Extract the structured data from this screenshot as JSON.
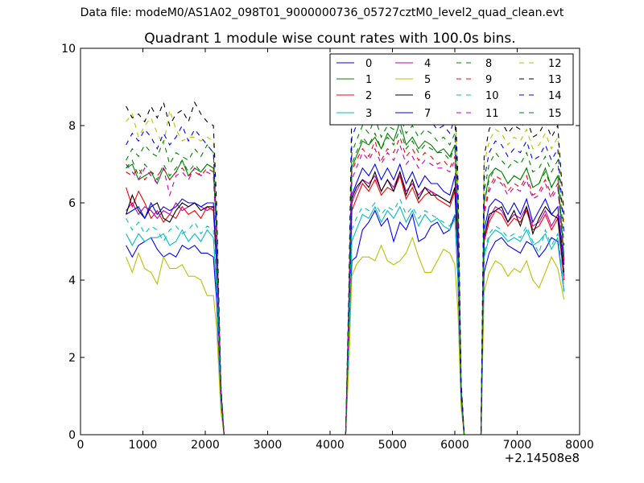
{
  "suptitle": "Data file: modeM0/AS1A02_098T01_9000000736_05727cztM0_level2_quad_clean.evt",
  "chart_data": {
    "type": "line",
    "title": "Quadrant 1 module wise count rates with 100.0s bins.",
    "xlabel": "",
    "ylabel": "",
    "x_offset_label": "+2.14508e8",
    "xlim": [
      0,
      8000
    ],
    "ylim": [
      0,
      10
    ],
    "xticks": [
      "0",
      "1000",
      "2000",
      "3000",
      "4000",
      "5000",
      "6000",
      "7000",
      "8000"
    ],
    "yticks": [
      "0",
      "2",
      "4",
      "6",
      "8",
      "10"
    ],
    "grid": false,
    "legend_position": "top-right",
    "x": [
      730,
      830,
      930,
      1030,
      1130,
      1230,
      1330,
      1430,
      1530,
      1630,
      1730,
      1830,
      1930,
      2030,
      2130,
      2180,
      2250,
      2300,
      2350,
      4250,
      4300,
      4350,
      4420,
      4520,
      4620,
      4720,
      4820,
      4920,
      5020,
      5120,
      5220,
      5320,
      5420,
      5520,
      5620,
      5720,
      5820,
      5920,
      6000,
      6050,
      6100,
      6150,
      6230,
      6420,
      6470,
      6550,
      6650,
      6750,
      6850,
      6950,
      7050,
      7150,
      7250,
      7350,
      7450,
      7550,
      7650,
      7750
    ],
    "series": [
      {
        "name": "0",
        "color": "#0000ff",
        "dash": "solid",
        "values": [
          4.9,
          4.6,
          4.9,
          5.0,
          5.1,
          4.8,
          4.6,
          4.7,
          4.6,
          4.9,
          4.8,
          4.9,
          4.7,
          4.7,
          4.6,
          3.5,
          0.8,
          0,
          0,
          0,
          2.2,
          4.5,
          4.6,
          5.3,
          5.5,
          5.8,
          5.4,
          5.6,
          5.0,
          5.5,
          5.3,
          5.7,
          5.0,
          5.1,
          5.4,
          5.5,
          5.2,
          5.3,
          5.7,
          4.0,
          0.9,
          0,
          0,
          0,
          4.2,
          4.7,
          5.0,
          5.1,
          4.9,
          4.8,
          4.7,
          5.0,
          4.9,
          4.6,
          4.8,
          5.1,
          5.0,
          3.7
        ]
      },
      {
        "name": "1",
        "color": "#008000",
        "dash": "solid",
        "values": [
          6.9,
          7.0,
          6.6,
          6.7,
          6.8,
          6.5,
          6.9,
          6.6,
          6.8,
          7.1,
          6.7,
          6.9,
          6.8,
          7.0,
          6.9,
          5.2,
          1.2,
          0,
          0,
          0,
          3.3,
          6.9,
          7.2,
          7.6,
          7.5,
          7.7,
          7.4,
          7.8,
          7.6,
          8.1,
          7.5,
          7.7,
          7.4,
          7.6,
          7.5,
          7.3,
          7.4,
          7.2,
          7.5,
          5.5,
          1.2,
          0,
          0,
          0,
          6.0,
          6.7,
          6.9,
          6.8,
          6.5,
          6.7,
          6.6,
          6.9,
          6.4,
          6.5,
          6.9,
          6.4,
          6.7,
          4.6
        ]
      },
      {
        "name": "2",
        "color": "#ff0000",
        "dash": "solid",
        "values": [
          6.4,
          5.9,
          6.3,
          6.0,
          5.6,
          5.8,
          5.5,
          5.7,
          5.6,
          5.9,
          5.7,
          5.8,
          5.6,
          5.9,
          5.8,
          4.4,
          1.0,
          0,
          0,
          0,
          2.8,
          5.8,
          6.1,
          6.5,
          6.3,
          6.6,
          6.2,
          6.4,
          6.3,
          6.7,
          6.1,
          6.4,
          6.0,
          6.2,
          6.3,
          6.1,
          6.0,
          5.9,
          6.3,
          4.6,
          1.0,
          0,
          0,
          0,
          5.0,
          5.5,
          5.8,
          5.7,
          5.4,
          5.6,
          5.5,
          5.8,
          5.3,
          5.4,
          5.7,
          5.3,
          5.6,
          4.0
        ]
      },
      {
        "name": "3",
        "color": "#00bfbf",
        "dash": "solid",
        "values": [
          5.2,
          4.9,
          5.2,
          5.0,
          5.1,
          5.1,
          5.2,
          4.9,
          5.0,
          5.3,
          5.0,
          5.2,
          5.0,
          5.3,
          5.1,
          3.8,
          0.9,
          0,
          0,
          0,
          2.4,
          5.0,
          5.3,
          5.7,
          5.6,
          5.9,
          5.5,
          5.8,
          5.6,
          5.9,
          5.5,
          5.8,
          5.4,
          5.7,
          5.5,
          5.6,
          5.4,
          5.3,
          5.6,
          4.2,
          0.9,
          0,
          0,
          0,
          4.6,
          5.1,
          5.3,
          5.2,
          5.0,
          5.1,
          5.0,
          5.3,
          4.9,
          5.0,
          5.2,
          4.8,
          5.1,
          3.7
        ]
      },
      {
        "name": "4",
        "color": "#bf00bf",
        "dash": "solid",
        "values": [
          5.8,
          6.0,
          5.7,
          5.9,
          5.8,
          5.6,
          5.8,
          5.7,
          6.0,
          5.8,
          5.9,
          6.0,
          5.9,
          5.8,
          5.9,
          4.5,
          1.0,
          0,
          0,
          0,
          2.9,
          6.0,
          6.3,
          6.6,
          6.5,
          6.7,
          6.3,
          6.6,
          6.4,
          6.8,
          6.3,
          6.5,
          6.2,
          6.4,
          6.3,
          6.2,
          6.1,
          6.0,
          6.4,
          4.7,
          1.0,
          0,
          0,
          0,
          5.1,
          5.6,
          5.9,
          5.8,
          5.5,
          5.7,
          5.6,
          5.9,
          5.4,
          5.5,
          5.8,
          5.4,
          5.7,
          4.1
        ]
      },
      {
        "name": "5",
        "color": "#bfbf00",
        "dash": "solid",
        "values": [
          4.6,
          4.2,
          4.7,
          4.3,
          4.2,
          3.9,
          4.6,
          4.3,
          4.3,
          4.4,
          4.1,
          4.1,
          4.0,
          3.6,
          3.6,
          2.8,
          0.6,
          0,
          0,
          0,
          1.8,
          4.1,
          4.4,
          4.6,
          4.6,
          4.5,
          4.9,
          4.5,
          4.4,
          4.5,
          4.7,
          5.1,
          4.6,
          4.2,
          4.2,
          4.5,
          4.8,
          4.7,
          4.4,
          3.2,
          0.7,
          0,
          0,
          0,
          3.7,
          4.2,
          4.5,
          4.4,
          4.1,
          4.3,
          4.2,
          4.5,
          4.0,
          3.8,
          4.2,
          4.6,
          4.3,
          3.5
        ]
      },
      {
        "name": "6",
        "color": "#000000",
        "dash": "solid",
        "values": [
          5.7,
          6.2,
          5.8,
          5.6,
          5.9,
          6.0,
          5.6,
          5.5,
          5.8,
          6.0,
          5.9,
          6.0,
          5.8,
          5.9,
          5.9,
          4.5,
          1.0,
          0,
          0,
          0,
          2.9,
          6.1,
          6.4,
          6.6,
          6.4,
          6.8,
          6.3,
          6.6,
          6.3,
          6.8,
          6.2,
          6.6,
          6.1,
          6.4,
          6.2,
          6.2,
          6.1,
          6.0,
          6.4,
          4.7,
          1.0,
          0,
          0,
          0,
          5.1,
          5.7,
          5.8,
          5.9,
          5.5,
          5.8,
          5.4,
          5.9,
          5.2,
          5.6,
          5.9,
          5.7,
          5.6,
          4.2
        ]
      },
      {
        "name": "7",
        "color": "#0000ff",
        "dash": "solid",
        "values": [
          5.7,
          5.8,
          5.9,
          5.6,
          6.0,
          5.7,
          5.9,
          5.8,
          5.9,
          6.1,
          6.0,
          6.0,
          5.9,
          6.0,
          6.0,
          4.6,
          1.0,
          0,
          0,
          0,
          2.9,
          6.2,
          6.5,
          6.9,
          6.7,
          7.0,
          6.6,
          6.9,
          6.6,
          7.0,
          6.5,
          6.8,
          6.4,
          6.7,
          6.5,
          6.5,
          6.3,
          6.2,
          6.7,
          4.9,
          1.1,
          0,
          0,
          0,
          5.3,
          5.9,
          6.1,
          6.0,
          5.7,
          6.0,
          5.7,
          6.1,
          5.5,
          5.8,
          6.1,
          5.7,
          5.9,
          4.4
        ]
      },
      {
        "name": "8",
        "color": "#008000",
        "dash": "dashed",
        "values": [
          7.1,
          7.4,
          7.2,
          7.5,
          7.3,
          7.2,
          7.6,
          7.0,
          7.3,
          7.2,
          7.1,
          7.4,
          7.2,
          7.5,
          7.3,
          5.5,
          1.2,
          0,
          0,
          0,
          3.4,
          7.3,
          7.6,
          8.0,
          7.8,
          8.2,
          7.7,
          8.0,
          7.9,
          8.3,
          7.8,
          8.0,
          7.7,
          7.9,
          7.8,
          7.6,
          7.7,
          7.5,
          7.8,
          5.8,
          1.3,
          0,
          0,
          0,
          6.3,
          7.0,
          7.3,
          7.1,
          6.9,
          7.1,
          7.0,
          7.3,
          6.8,
          6.9,
          7.2,
          6.8,
          7.1,
          4.9
        ]
      },
      {
        "name": "9",
        "color": "#ff0000",
        "dash": "dashed",
        "values": [
          6.8,
          6.7,
          6.9,
          6.6,
          6.8,
          6.7,
          6.9,
          6.6,
          6.8,
          6.9,
          6.7,
          6.8,
          6.7,
          6.9,
          6.8,
          5.1,
          1.1,
          0,
          0,
          0,
          3.2,
          6.8,
          7.1,
          7.4,
          7.2,
          7.6,
          7.1,
          7.4,
          7.3,
          7.7,
          7.2,
          7.4,
          7.1,
          7.3,
          7.2,
          7.0,
          7.1,
          6.9,
          7.2,
          5.3,
          1.2,
          0,
          0,
          0,
          5.8,
          6.4,
          6.7,
          6.6,
          6.3,
          6.5,
          6.4,
          6.7,
          6.2,
          6.3,
          6.6,
          6.2,
          6.5,
          4.5
        ]
      },
      {
        "name": "10",
        "color": "#00bfbf",
        "dash": "dashed",
        "values": [
          5.6,
          5.3,
          5.5,
          5.2,
          5.4,
          5.3,
          5.0,
          5.3,
          5.4,
          5.2,
          5.3,
          5.5,
          5.2,
          5.4,
          5.3,
          4.0,
          0.9,
          0,
          0,
          0,
          2.5,
          5.3,
          5.6,
          5.9,
          5.8,
          6.0,
          5.7,
          5.9,
          5.8,
          6.1,
          5.7,
          5.9,
          5.6,
          5.8,
          5.7,
          5.6,
          5.5,
          5.4,
          5.7,
          4.3,
          0.9,
          0,
          0,
          0,
          4.7,
          5.2,
          5.4,
          5.3,
          5.1,
          5.2,
          5.1,
          5.4,
          5.0,
          4.7,
          5.3,
          4.9,
          5.2,
          3.8
        ]
      },
      {
        "name": "11",
        "color": "#bf00bf",
        "dash": "dashed",
        "values": [
          7.0,
          6.8,
          6.6,
          6.9,
          6.7,
          6.5,
          6.9,
          6.2,
          6.7,
          6.8,
          6.6,
          6.9,
          6.7,
          6.8,
          6.7,
          5.0,
          1.1,
          0,
          0,
          0,
          3.1,
          6.6,
          6.9,
          7.3,
          7.1,
          7.4,
          7.0,
          7.3,
          7.1,
          7.5,
          7.0,
          7.2,
          6.9,
          7.1,
          7.0,
          6.9,
          6.9,
          6.8,
          7.1,
          5.2,
          1.1,
          0,
          0,
          0,
          5.7,
          6.3,
          6.6,
          6.5,
          6.2,
          6.4,
          6.3,
          6.6,
          6.1,
          6.2,
          6.5,
          6.1,
          6.4,
          4.5
        ]
      },
      {
        "name": "12",
        "color": "#bfbf00",
        "dash": "dashed",
        "values": [
          8.1,
          8.3,
          7.7,
          8.0,
          8.2,
          7.8,
          7.5,
          8.4,
          7.9,
          7.6,
          7.7,
          7.7,
          7.6,
          7.7,
          7.6,
          5.7,
          1.3,
          0,
          0,
          0,
          3.6,
          8.3,
          8.5,
          8.8,
          8.6,
          9.0,
          8.5,
          8.8,
          8.6,
          9.0,
          8.5,
          8.7,
          8.4,
          8.6,
          8.5,
          8.3,
          8.4,
          8.2,
          8.6,
          6.4,
          1.4,
          0,
          0,
          0,
          7.0,
          7.6,
          7.9,
          7.8,
          7.5,
          7.7,
          7.6,
          7.9,
          7.4,
          7.5,
          7.8,
          7.4,
          7.7,
          5.5
        ]
      },
      {
        "name": "13",
        "color": "#000000",
        "dash": "dashed",
        "values": [
          8.5,
          8.2,
          8.3,
          8.1,
          8.5,
          8.2,
          8.6,
          8.0,
          8.3,
          8.4,
          8.1,
          8.6,
          8.3,
          8.1,
          8.0,
          6.0,
          1.3,
          0,
          0,
          0,
          3.7,
          8.6,
          8.8,
          9.1,
          8.9,
          9.3,
          8.8,
          9.1,
          8.9,
          9.3,
          8.8,
          9.0,
          8.7,
          8.9,
          8.8,
          8.6,
          8.7,
          8.5,
          8.9,
          6.6,
          1.4,
          0,
          0,
          0,
          7.2,
          7.9,
          8.2,
          8.1,
          7.8,
          8.0,
          7.9,
          8.2,
          7.7,
          7.8,
          8.1,
          7.7,
          8.0,
          5.7
        ]
      },
      {
        "name": "14",
        "color": "#0000ff",
        "dash": "dashed",
        "values": [
          7.5,
          7.8,
          7.6,
          7.9,
          7.7,
          7.4,
          7.8,
          7.5,
          7.7,
          8.0,
          7.6,
          7.9,
          7.7,
          7.5,
          7.3,
          5.5,
          1.2,
          0,
          0,
          0,
          3.4,
          7.7,
          8.0,
          8.4,
          8.2,
          8.6,
          8.1,
          8.4,
          8.2,
          8.6,
          8.1,
          8.3,
          8.0,
          8.2,
          8.1,
          7.9,
          8.0,
          7.8,
          8.2,
          6.1,
          1.3,
          0,
          0,
          0,
          6.6,
          7.3,
          7.6,
          7.5,
          7.2,
          7.4,
          7.3,
          7.6,
          7.1,
          7.2,
          7.5,
          7.1,
          7.4,
          5.2
        ]
      },
      {
        "name": "15",
        "color": "#008000",
        "dash": "dashed",
        "values": [
          6.9,
          7.1,
          6.7,
          7.0,
          6.8,
          6.6,
          7.0,
          6.7,
          6.9,
          7.1,
          6.8,
          7.0,
          6.8,
          7.0,
          6.9,
          5.2,
          1.1,
          0,
          0,
          0,
          3.2,
          7.0,
          7.3,
          7.7,
          7.5,
          7.8,
          7.4,
          7.7,
          7.5,
          7.9,
          7.4,
          7.6,
          7.3,
          7.5,
          7.4,
          7.3,
          7.3,
          7.1,
          7.5,
          5.5,
          1.2,
          0,
          0,
          0,
          6.0,
          6.6,
          6.9,
          6.8,
          6.5,
          6.7,
          6.6,
          6.9,
          6.4,
          6.5,
          6.8,
          6.4,
          6.7,
          4.6
        ]
      }
    ]
  }
}
